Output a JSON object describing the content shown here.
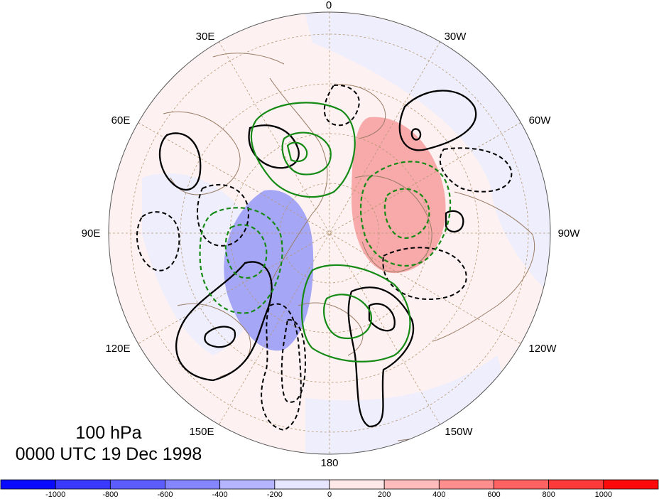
{
  "map": {
    "level": "100 hPa",
    "time": "0000 UTC 19 Dec 1998",
    "longitude_labels": [
      "0",
      "30W",
      "60W",
      "90W",
      "120W",
      "150W",
      "180",
      "150E",
      "120E",
      "90E",
      "60E",
      "30E"
    ]
  },
  "colorbar": {
    "ticks": [
      "-1000",
      "-800",
      "-600",
      "-400",
      "-200",
      "0",
      "200",
      "400",
      "600",
      "800",
      "1000"
    ],
    "colors": [
      "#0a0aff",
      "#3a3aff",
      "#5c5cff",
      "#8585ff",
      "#b4b4ff",
      "#e6e6ff",
      "#ffe8e8",
      "#ffbcbc",
      "#ff8f8f",
      "#ff6262",
      "#ff3a3a",
      "#ff0a0a"
    ]
  },
  "colors": {
    "positive_contour": "#000000",
    "negative_contour": "#000000",
    "secondary_contour": "#158a15",
    "coastline": "#9a7d66",
    "gridline": "#b59873"
  }
}
